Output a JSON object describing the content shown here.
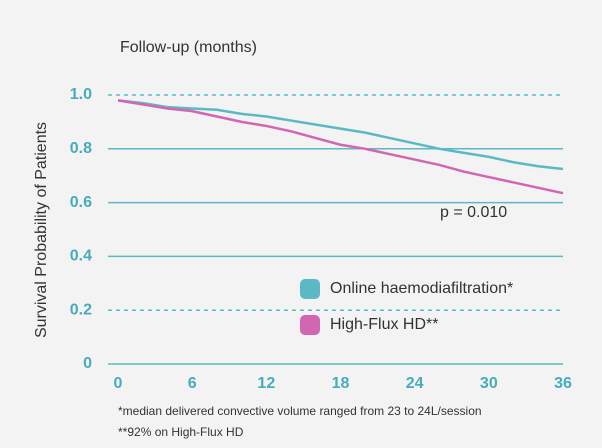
{
  "chart_data": {
    "type": "line",
    "title": "Follow-up (months)",
    "y_label": "Survival Probability of Patients",
    "annotation": "p = 0.010",
    "footnotes": [
      "*median delivered convective volume ranged from 23 to 24L/session",
      "**92% on High-Flux HD"
    ],
    "x": [
      0,
      2,
      4,
      6,
      8,
      10,
      12,
      14,
      16,
      18,
      20,
      22,
      24,
      26,
      28,
      30,
      32,
      34,
      36
    ],
    "series": [
      {
        "name": "Online haemodiafiltration*",
        "color": "#5bb9c5",
        "values": [
          0.98,
          0.97,
          0.955,
          0.95,
          0.945,
          0.93,
          0.92,
          0.905,
          0.89,
          0.875,
          0.86,
          0.84,
          0.82,
          0.8,
          0.785,
          0.77,
          0.75,
          0.735,
          0.725
        ]
      },
      {
        "name": "High-Flux HD**",
        "color": "#d166b3",
        "values": [
          0.98,
          0.965,
          0.95,
          0.94,
          0.92,
          0.9,
          0.885,
          0.865,
          0.84,
          0.815,
          0.8,
          0.78,
          0.76,
          0.74,
          0.715,
          0.695,
          0.675,
          0.655,
          0.635
        ]
      }
    ],
    "xlim": [
      0,
      36
    ],
    "ylim": [
      0,
      1
    ],
    "xticks": [
      0,
      6,
      12,
      18,
      24,
      30,
      36
    ],
    "yticks": [
      0,
      0.2,
      0.4,
      0.6,
      0.8,
      {
        "value": 1,
        "label": "1.0"
      }
    ],
    "dashed_gridlines": [
      0.2,
      1
    ],
    "grid": true,
    "legend": "lower right"
  }
}
